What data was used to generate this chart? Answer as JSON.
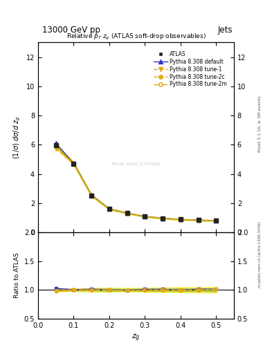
{
  "title_top": "13000 GeV pp",
  "title_right": "Jets",
  "plot_title": "Relative $p_{T}$ $z_{g}$ (ATLAS soft-drop observables)",
  "ylabel_main": "(1/σ) dσ/d z₟",
  "ylabel_ratio": "Ratio to ATLAS",
  "xlabel": "z₟",
  "rivet_label": "Rivet 3.1.10, ≥ 3M events",
  "arxiv_label": "mcplots.cern.ch [arXiv:1306.3436]",
  "watermark": "ATLAS_2019_I1772062",
  "zg_centers": [
    0.05,
    0.1,
    0.15,
    0.2,
    0.25,
    0.3,
    0.35,
    0.4,
    0.45,
    0.5
  ],
  "atlas_y": [
    5.95,
    4.7,
    2.52,
    1.6,
    1.32,
    1.08,
    0.96,
    0.88,
    0.83,
    0.8
  ],
  "atlas_yerr": [
    0.08,
    0.06,
    0.04,
    0.03,
    0.02,
    0.02,
    0.02,
    0.02,
    0.02,
    0.02
  ],
  "default_y": [
    6.1,
    4.72,
    2.55,
    1.61,
    1.31,
    1.09,
    0.97,
    0.88,
    0.84,
    0.81
  ],
  "tune1_y": [
    5.72,
    4.68,
    2.5,
    1.6,
    1.3,
    1.07,
    0.96,
    0.88,
    0.83,
    0.81
  ],
  "tune2c_y": [
    5.9,
    4.71,
    2.52,
    1.6,
    1.3,
    1.08,
    0.96,
    0.87,
    0.83,
    0.8
  ],
  "tune2m_y": [
    5.85,
    4.69,
    2.51,
    1.6,
    1.3,
    1.07,
    0.95,
    0.87,
    0.82,
    0.8
  ],
  "default_color": "#3333cc",
  "tune1_color": "#e6a817",
  "tune2c_color": "#e6a817",
  "tune2m_color": "#e6a817",
  "atlas_color": "#222222",
  "green_band_color": "#88cc44",
  "yellow_band_color": "#ffee44",
  "ylim_main": [
    0,
    13
  ],
  "ylim_ratio": [
    0.5,
    2.0
  ],
  "xlim": [
    0.0,
    0.55
  ],
  "yticks_main": [
    0,
    2,
    4,
    6,
    8,
    10,
    12
  ],
  "yticks_ratio": [
    0.5,
    1.0,
    1.5,
    2.0
  ],
  "xticks": [
    0.0,
    0.1,
    0.2,
    0.3,
    0.4,
    0.5
  ]
}
